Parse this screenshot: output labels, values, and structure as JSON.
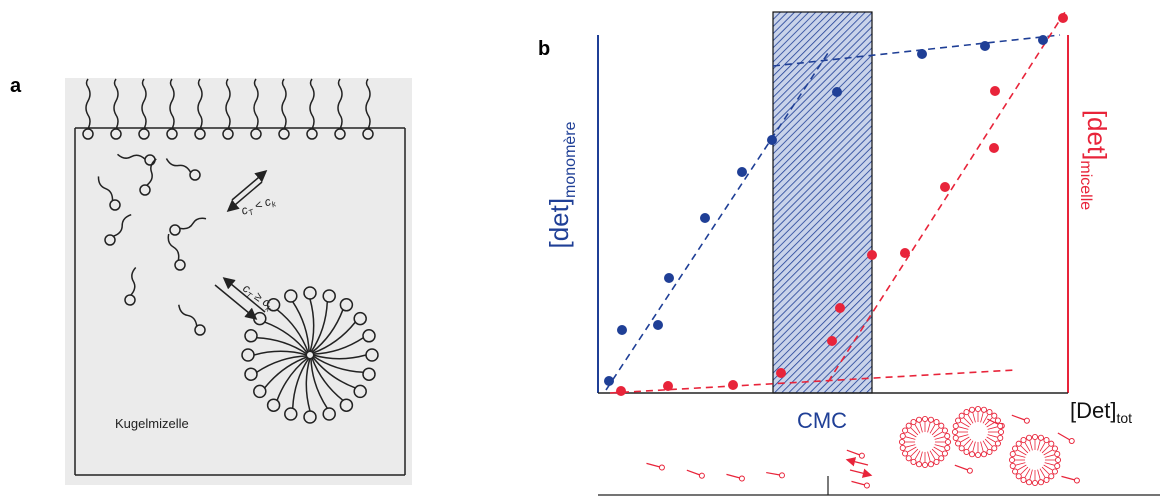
{
  "panel_a": {
    "label": "a",
    "arrow_low": {
      "c": "c",
      "t": "T",
      "op": "< c",
      "k": "k"
    },
    "arrow_high": {
      "c": "c",
      "t": "T",
      "op": "≥ c",
      "k": "k"
    },
    "micelle_label": "Kugelmizelle"
  },
  "panel_b": {
    "label": "b",
    "y_left": {
      "main": "[det]",
      "sub": "monomère"
    },
    "y_right": {
      "main": "[det]",
      "sub": "micelle"
    },
    "x_axis": {
      "main": "[Det]",
      "sub": "tot"
    },
    "cmc": "CMC"
  }
}
